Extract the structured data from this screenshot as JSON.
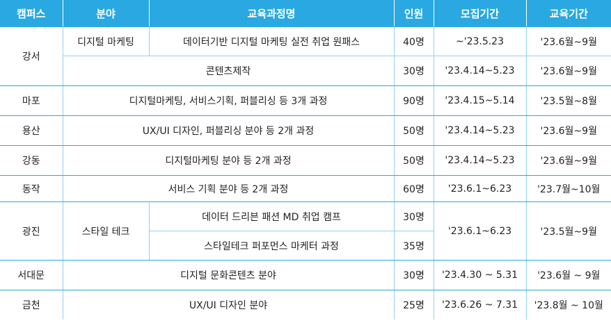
{
  "headers": {
    "campus": "캠퍼스",
    "field": "분야",
    "course": "교육과정명",
    "count": "인원",
    "recruit": "모집기간",
    "edu": "교육기간"
  },
  "rows": {
    "gangseo": {
      "campus": "강서",
      "r1": {
        "field": "디지털 마케팅",
        "course": "데이터기반 디지털 마케팅 실전 취업 원패스",
        "count": "40명",
        "recruit": "~'23.5.23",
        "edu": "'23.6월~9월"
      },
      "r2": {
        "course": "콘텐츠제작",
        "count": "30명",
        "recruit": "'23.4.14~5.23",
        "edu": "'23.6월~9월"
      }
    },
    "mapo": {
      "campus": "마포",
      "course": "디지털마케팅, 서비스기획, 퍼블리싱 등 3개 과정",
      "count": "90명",
      "recruit": "'23.4.15~5.14",
      "edu": "'23.5월~8월"
    },
    "yongsan": {
      "campus": "용산",
      "course": "UX/UI 디자인, 퍼블리싱 분야 등 2개 과정",
      "count": "50명",
      "recruit": "'23.4.14~5.23",
      "edu": "'23.6월~9월"
    },
    "gangdong": {
      "campus": "강동",
      "course": "디지털마케팅 분야 등 2개 과정",
      "count": "50명",
      "recruit": "'23.4.14~5.23",
      "edu": "'23.6월~9월"
    },
    "dongjak": {
      "campus": "동작",
      "course": "서비스 기획 분야 등 2개 과정",
      "count": "60명",
      "recruit": "'23.6.1~6.23",
      "edu": "'23.7월~10월"
    },
    "gwangjin": {
      "campus": "광진",
      "field": "스타일 테크",
      "recruit": "'23.6.1~6.23",
      "edu": "'23.5월~9월",
      "r1": {
        "course": "데이터 드리븐 패션 MD 취업 캠프",
        "count": "30명"
      },
      "r2": {
        "course": "스타일테크 퍼포먼스 마케터 과정",
        "count": "35명"
      }
    },
    "seodaemun": {
      "campus": "서대문",
      "course": "디지털 문화콘텐츠 분야",
      "count": "30명",
      "recruit": "'23.4.30 ~ 5.31",
      "edu": "'23.6월 ~ 9월"
    },
    "geumcheon": {
      "campus": "금천",
      "course": "UX/UI 디자인 분야",
      "count": "25명",
      "recruit": "'23.6.26 ~ 7.31",
      "edu": "'23.8월 ~ 10월"
    }
  }
}
